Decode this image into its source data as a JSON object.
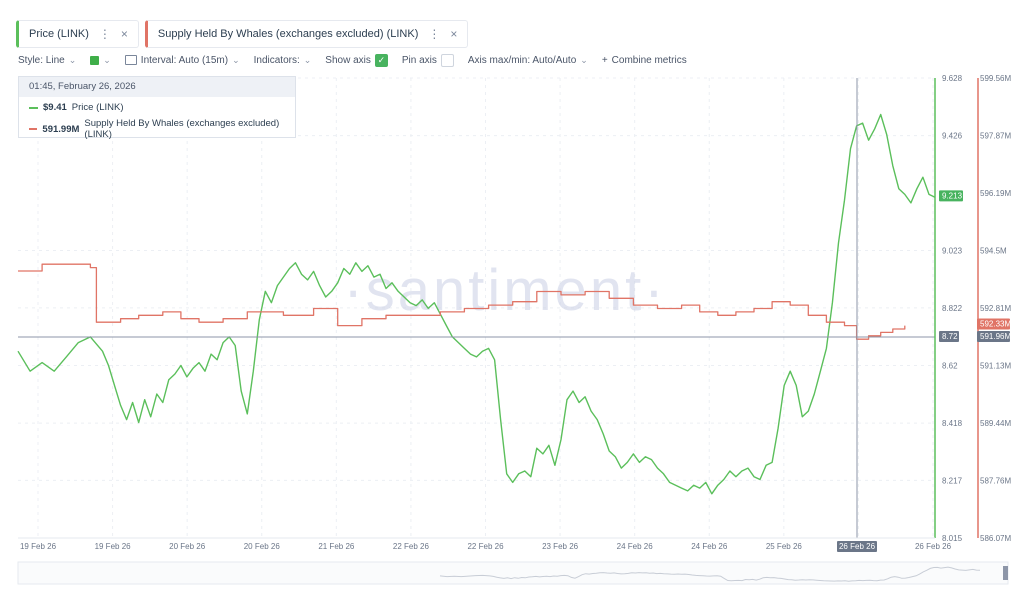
{
  "metric_tabs": [
    {
      "label": "Price (LINK)",
      "color": "#5bbf5b"
    },
    {
      "label": "Supply Held By Whales (exchanges excluded) (LINK)",
      "color": "#e07466"
    }
  ],
  "toolbar": {
    "style_label": "Style: Line",
    "interval_label": "Interval: Auto (15m)",
    "indicators_label": "Indicators:",
    "show_axis_label": "Show axis",
    "pin_axis_label": "Pin axis",
    "axis_maxmin_label": "Axis max/min: Auto/Auto",
    "combine_label": "Combine metrics"
  },
  "tooltip": {
    "datetime": "01:45, February 26, 2026",
    "rows": [
      {
        "value": "$9.41",
        "label": "Price (LINK)",
        "color": "#5bbf5b"
      },
      {
        "value": "591.99M",
        "label": "Supply Held By Whales (exchanges excluded) (LINK)",
        "color": "#e07466"
      }
    ]
  },
  "watermark": "·santiment·",
  "chart_data": {
    "type": "line",
    "x_tick_labels": [
      "19 Feb 26",
      "19 Feb 26",
      "20 Feb 26",
      "20 Feb 26",
      "21 Feb 26",
      "22 Feb 26",
      "22 Feb 26",
      "23 Feb 26",
      "24 Feb 26",
      "24 Feb 26",
      "25 Feb 26",
      "26 Feb 26",
      "26 Feb 26"
    ],
    "highlighted_x_label": "26 Feb 26",
    "y_left": {
      "name": "Price (LINK)",
      "color": "#5bbf5b",
      "ticks": [
        "9.628",
        "9.426",
        "9.023",
        "8.822",
        "8.62",
        "8.418",
        "8.217",
        "8.015"
      ],
      "range": [
        8.015,
        9.628
      ],
      "current_label": "9.213",
      "crosshair_label": "8.72"
    },
    "y_right": {
      "name": "Supply Held By Whales (exchanges excluded) (LINK)",
      "color": "#e07466",
      "ticks": [
        "599.56M",
        "597.87M",
        "596.19M",
        "594.5M",
        "592.81M",
        "591.13M",
        "589.44M",
        "587.76M",
        "586.07M"
      ],
      "range": [
        586.07,
        599.56
      ],
      "current_label": "592.33M",
      "crosshair_label": "591.96M"
    },
    "series": [
      {
        "name": "Price (LINK)",
        "color": "#5bbf5b",
        "points": [
          [
            0,
            8.67
          ],
          [
            2,
            8.6
          ],
          [
            4,
            8.63
          ],
          [
            6,
            8.6
          ],
          [
            8,
            8.65
          ],
          [
            10,
            8.7
          ],
          [
            12,
            8.72
          ],
          [
            14,
            8.67
          ],
          [
            15,
            8.62
          ],
          [
            16,
            8.55
          ],
          [
            17,
            8.48
          ],
          [
            18,
            8.43
          ],
          [
            19,
            8.49
          ],
          [
            20,
            8.42
          ],
          [
            21,
            8.5
          ],
          [
            22,
            8.44
          ],
          [
            23,
            8.52
          ],
          [
            24,
            8.49
          ],
          [
            25,
            8.57
          ],
          [
            26,
            8.59
          ],
          [
            27,
            8.62
          ],
          [
            28,
            8.58
          ],
          [
            29,
            8.61
          ],
          [
            30,
            8.63
          ],
          [
            31,
            8.6
          ],
          [
            32,
            8.66
          ],
          [
            33,
            8.64
          ],
          [
            34,
            8.7
          ],
          [
            35,
            8.72
          ],
          [
            36,
            8.69
          ],
          [
            37,
            8.53
          ],
          [
            38,
            8.45
          ],
          [
            39,
            8.6
          ],
          [
            40,
            8.78
          ],
          [
            41,
            8.88
          ],
          [
            42,
            8.84
          ],
          [
            43,
            8.9
          ],
          [
            44,
            8.93
          ],
          [
            45,
            8.96
          ],
          [
            46,
            8.98
          ],
          [
            47,
            8.94
          ],
          [
            48,
            8.92
          ],
          [
            49,
            8.95
          ],
          [
            50,
            8.9
          ],
          [
            51,
            8.86
          ],
          [
            52,
            8.88
          ],
          [
            53,
            8.91
          ],
          [
            54,
            8.96
          ],
          [
            55,
            8.94
          ],
          [
            56,
            8.98
          ],
          [
            57,
            8.95
          ],
          [
            58,
            8.97
          ],
          [
            59,
            8.93
          ],
          [
            60,
            8.94
          ],
          [
            61,
            8.89
          ],
          [
            62,
            8.91
          ],
          [
            63,
            8.88
          ],
          [
            64,
            8.86
          ],
          [
            65,
            8.84
          ],
          [
            66,
            8.83
          ],
          [
            67,
            8.85
          ],
          [
            68,
            8.82
          ],
          [
            69,
            8.84
          ],
          [
            70,
            8.8
          ],
          [
            71,
            8.76
          ],
          [
            72,
            8.72
          ],
          [
            73,
            8.7
          ],
          [
            74,
            8.68
          ],
          [
            75,
            8.66
          ],
          [
            76,
            8.65
          ],
          [
            77,
            8.67
          ],
          [
            78,
            8.68
          ],
          [
            79,
            8.64
          ],
          [
            80,
            8.43
          ],
          [
            81,
            8.24
          ],
          [
            82,
            8.21
          ],
          [
            83,
            8.24
          ],
          [
            84,
            8.25
          ],
          [
            85,
            8.23
          ],
          [
            86,
            8.33
          ],
          [
            87,
            8.31
          ],
          [
            88,
            8.34
          ],
          [
            89,
            8.27
          ],
          [
            90,
            8.36
          ],
          [
            91,
            8.5
          ],
          [
            92,
            8.53
          ],
          [
            93,
            8.49
          ],
          [
            94,
            8.51
          ],
          [
            95,
            8.46
          ],
          [
            96,
            8.43
          ],
          [
            97,
            8.38
          ],
          [
            98,
            8.32
          ],
          [
            99,
            8.3
          ],
          [
            100,
            8.26
          ],
          [
            101,
            8.28
          ],
          [
            102,
            8.31
          ],
          [
            103,
            8.28
          ],
          [
            104,
            8.3
          ],
          [
            105,
            8.29
          ],
          [
            106,
            8.26
          ],
          [
            107,
            8.24
          ],
          [
            108,
            8.21
          ],
          [
            109,
            8.2
          ],
          [
            110,
            8.19
          ],
          [
            111,
            8.18
          ],
          [
            112,
            8.2
          ],
          [
            113,
            8.19
          ],
          [
            114,
            8.21
          ],
          [
            115,
            8.17
          ],
          [
            116,
            8.2
          ],
          [
            117,
            8.22
          ],
          [
            118,
            8.25
          ],
          [
            119,
            8.23
          ],
          [
            120,
            8.25
          ],
          [
            121,
            8.26
          ],
          [
            122,
            8.23
          ],
          [
            123,
            8.22
          ],
          [
            124,
            8.27
          ],
          [
            125,
            8.28
          ],
          [
            126,
            8.4
          ],
          [
            127,
            8.55
          ],
          [
            128,
            8.6
          ],
          [
            129,
            8.55
          ],
          [
            130,
            8.44
          ],
          [
            131,
            8.46
          ],
          [
            132,
            8.52
          ],
          [
            133,
            8.6
          ],
          [
            134,
            8.68
          ],
          [
            135,
            8.84
          ],
          [
            136,
            9.05
          ],
          [
            137,
            9.2
          ],
          [
            138,
            9.38
          ],
          [
            139,
            9.46
          ],
          [
            140,
            9.47
          ],
          [
            141,
            9.41
          ],
          [
            142,
            9.45
          ],
          [
            143,
            9.5
          ],
          [
            144,
            9.43
          ],
          [
            145,
            9.32
          ],
          [
            146,
            9.24
          ],
          [
            147,
            9.22
          ],
          [
            148,
            9.19
          ],
          [
            149,
            9.24
          ],
          [
            150,
            9.28
          ],
          [
            151,
            9.22
          ],
          [
            152,
            9.21
          ]
        ]
      },
      {
        "name": "Supply Held By Whales (exchanges excluded) (LINK)",
        "color": "#e07466",
        "points": [
          [
            0,
            593.9
          ],
          [
            4,
            594.1
          ],
          [
            12,
            594.0
          ],
          [
            13,
            592.4
          ],
          [
            17,
            592.5
          ],
          [
            20,
            592.6
          ],
          [
            24,
            592.7
          ],
          [
            27,
            592.5
          ],
          [
            30,
            592.4
          ],
          [
            34,
            592.5
          ],
          [
            38,
            592.7
          ],
          [
            44,
            592.6
          ],
          [
            49,
            592.8
          ],
          [
            53,
            592.3
          ],
          [
            57,
            592.5
          ],
          [
            61,
            592.6
          ],
          [
            66,
            592.6
          ],
          [
            70,
            592.7
          ],
          [
            74,
            592.8
          ],
          [
            78,
            592.9
          ],
          [
            82,
            593.0
          ],
          [
            86,
            593.3
          ],
          [
            90,
            593.2
          ],
          [
            94,
            593.3
          ],
          [
            98,
            593.1
          ],
          [
            102,
            592.9
          ],
          [
            106,
            592.8
          ],
          [
            110,
            592.9
          ],
          [
            113,
            592.7
          ],
          [
            116,
            592.6
          ],
          [
            119,
            592.7
          ],
          [
            122,
            592.8
          ],
          [
            125,
            593.0
          ],
          [
            128,
            592.9
          ],
          [
            131,
            592.6
          ],
          [
            134,
            592.4
          ],
          [
            137,
            592.3
          ],
          [
            139,
            591.9
          ],
          [
            141,
            592.0
          ],
          [
            143,
            592.1
          ],
          [
            145,
            592.2
          ],
          [
            147,
            592.3
          ]
        ]
      }
    ]
  }
}
